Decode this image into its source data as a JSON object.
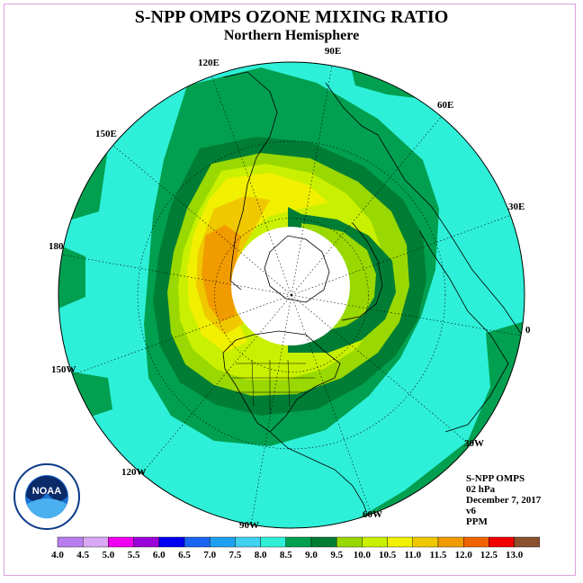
{
  "title": "S-NPP OMPS OZONE MIXING RATIO",
  "subtitle": "Northern Hemisphere",
  "longitude_labels": [
    "90E",
    "60E",
    "30E",
    "0",
    "30W",
    "60W",
    "90W",
    "120W",
    "150W",
    "180",
    "150E",
    "120E"
  ],
  "info": {
    "instrument": "S-NPP OMPS",
    "level": "02 hPa",
    "date": "December 7, 2017",
    "version": "v6",
    "units": "PPM"
  },
  "logo": {
    "text": "NOAA",
    "ring_text": "NATIONAL OCEANIC AND ATMOSPHERIC ADMINISTRATION · U.S. DEPARTMENT OF COMMERCE"
  },
  "colorbar": {
    "ticks": [
      "4.0",
      "4.5",
      "5.0",
      "5.5",
      "6.0",
      "6.5",
      "7.0",
      "7.5",
      "8.0",
      "8.5",
      "9.0",
      "9.5",
      "10.0",
      "10.5",
      "11.0",
      "11.5",
      "12.0",
      "12.5",
      "13.0"
    ],
    "colors": [
      "#b87ef0",
      "#d9a8f5",
      "#f000f0",
      "#9a00d8",
      "#0000f0",
      "#1a64f0",
      "#1ea0f0",
      "#40d0f0",
      "#2ef0d8",
      "#00a050",
      "#007d35",
      "#99d800",
      "#c8f000",
      "#f0f000",
      "#f0c800",
      "#f09b00",
      "#f06400",
      "#f00000",
      "#8a5030"
    ]
  },
  "map_colors": {
    "ocean_background": "#2ef0d8",
    "band_8_5": "#00a050",
    "band_9_0": "#007d35",
    "band_9_5": "#99d800",
    "band_10_0": "#c8f000",
    "band_10_5": "#f0f000",
    "band_11_0": "#f0c800",
    "band_11_5": "#f09b00",
    "polar_night": "#ffffff"
  }
}
